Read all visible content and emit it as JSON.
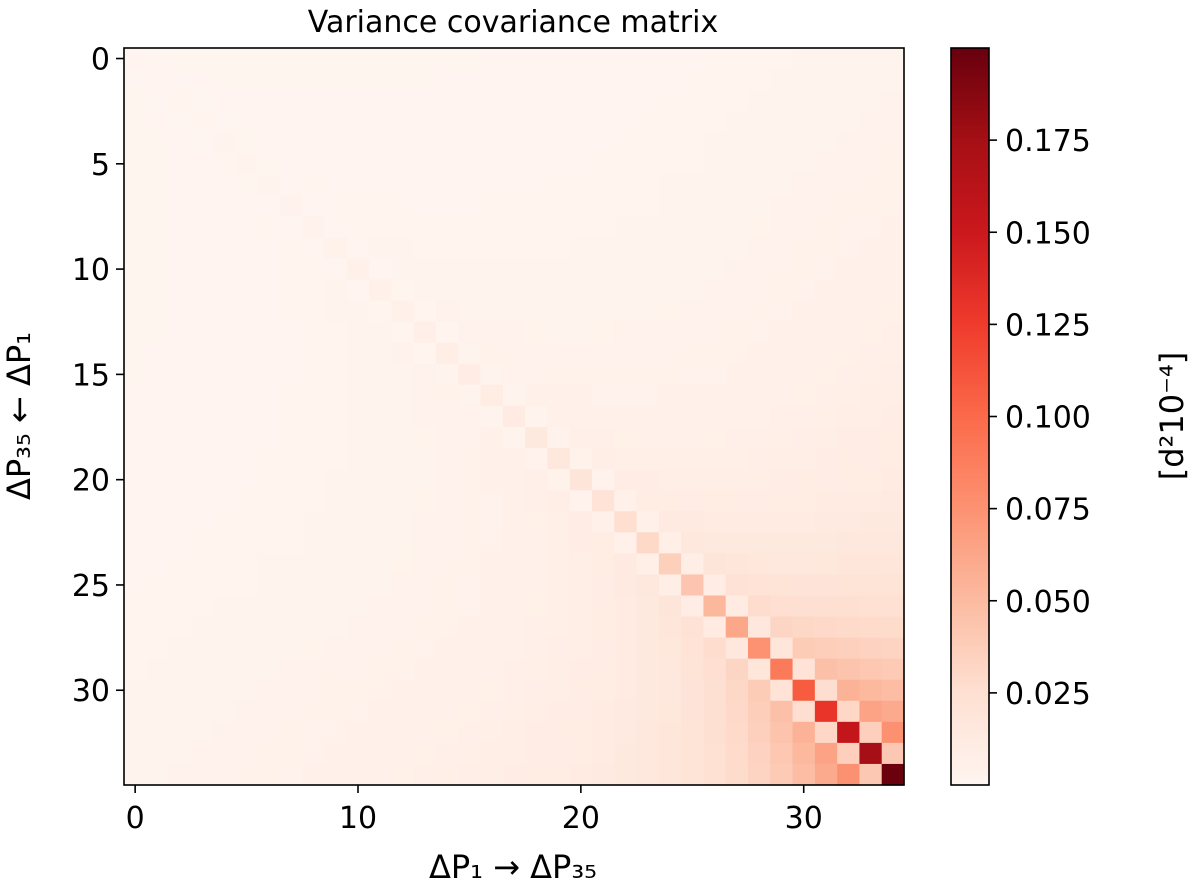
{
  "chart_data": {
    "type": "heatmap",
    "title": "Variance covariance matrix",
    "xlabel": "ΔP₁ → ΔP₃₅",
    "ylabel": "ΔP₃₅ ← ΔP₁",
    "size": 35,
    "x_ticks": [
      "0",
      "10",
      "20",
      "30"
    ],
    "y_ticks": [
      "0",
      "5",
      "10",
      "15",
      "20",
      "25",
      "30"
    ],
    "colormap": "Reds",
    "colorbar": {
      "label": "[d²10⁻⁴]",
      "vmin": 0.0,
      "vmax": 0.2,
      "ticks": [
        "0.025",
        "0.050",
        "0.075",
        "0.100",
        "0.125",
        "0.150",
        "0.175"
      ]
    },
    "colors": {
      "stops": [
        "#fff5f0",
        "#fee0d2",
        "#fcbba1",
        "#fc9272",
        "#fb6a4a",
        "#ef3b2c",
        "#cb181d",
        "#a50f15",
        "#67000d"
      ]
    },
    "diagonal_values": [
      0.001,
      0.0012,
      0.0014,
      0.0016,
      0.0019,
      0.0022,
      0.0026,
      0.003,
      0.0035,
      0.004,
      0.0046,
      0.0053,
      0.0061,
      0.007,
      0.008,
      0.0092,
      0.0105,
      0.012,
      0.014,
      0.016,
      0.019,
      0.022,
      0.026,
      0.03,
      0.036,
      0.043,
      0.052,
      0.062,
      0.075,
      0.09,
      0.108,
      0.13,
      0.155,
      0.175,
      0.198
    ]
  }
}
